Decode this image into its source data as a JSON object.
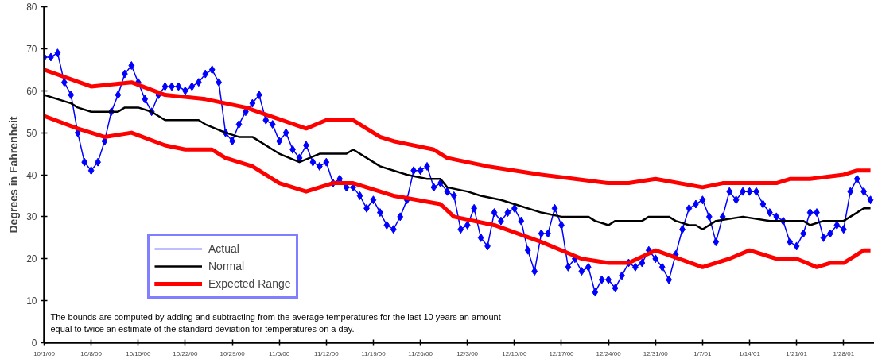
{
  "chart_data": {
    "type": "line",
    "ylabel": "Degrees in Fahrenheit",
    "annotations": [
      "The bounds are computed by adding and subtracting from the average temperatures for the last 10 years an amount equal to twice an estimate of the standard deviation for temperatures on a day."
    ],
    "xlim": [
      "2000-10-01",
      "2001-02-01T14:00"
    ],
    "xticks": [
      {
        "value": "2000-10-01",
        "label": "10/1/00"
      },
      {
        "value": "2000-10-08",
        "label": "10/8/00"
      },
      {
        "value": "2000-10-15",
        "label": "10/15/00"
      },
      {
        "value": "2000-10-22",
        "label": "10/22/00"
      },
      {
        "value": "2000-10-29",
        "label": "10/29/00"
      },
      {
        "value": "2000-11-05",
        "label": "11/5/00"
      },
      {
        "value": "2000-11-12",
        "label": "11/12/00"
      },
      {
        "value": "2000-11-19",
        "label": "11/19/00"
      },
      {
        "value": "2000-11-26",
        "label": "11/26/00"
      },
      {
        "value": "2000-12-03",
        "label": "12/3/00"
      },
      {
        "value": "2000-12-10",
        "label": "12/10/00"
      },
      {
        "value": "2000-12-17",
        "label": "12/17/00"
      },
      {
        "value": "2000-12-24",
        "label": "12/24/00"
      },
      {
        "value": "2000-12-31",
        "label": "12/31/00"
      },
      {
        "value": "2001-01-07",
        "label": "1/7/01"
      },
      {
        "value": "2001-01-14",
        "label": "1/14/01"
      },
      {
        "value": "2001-01-21",
        "label": "1/21/01"
      },
      {
        "value": "2001-01-28",
        "label": "1/28/01"
      }
    ],
    "ylim": [
      0,
      80
    ],
    "yticks": [
      0,
      10,
      20,
      30,
      40,
      50,
      60,
      70,
      80
    ],
    "grid": false,
    "legend": "bottom left",
    "series": [
      {
        "name": "Actual",
        "color": "#0000ff",
        "marker": "diamond",
        "line_style": "solid",
        "x": [
          "2000-10-01",
          "2000-10-02",
          "2000-10-03",
          "2000-10-04",
          "2000-10-05",
          "2000-10-06",
          "2000-10-07",
          "2000-10-08",
          "2000-10-09",
          "2000-10-10",
          "2000-10-11",
          "2000-10-12",
          "2000-10-13",
          "2000-10-14",
          "2000-10-15",
          "2000-10-16",
          "2000-10-17",
          "2000-10-18",
          "2000-10-19",
          "2000-10-20",
          "2000-10-21",
          "2000-10-22",
          "2000-10-23",
          "2000-10-24",
          "2000-10-25",
          "2000-10-26",
          "2000-10-27",
          "2000-10-28",
          "2000-10-29",
          "2000-10-30",
          "2000-10-31",
          "2000-11-01",
          "2000-11-02",
          "2000-11-03",
          "2000-11-04",
          "2000-11-05",
          "2000-11-06",
          "2000-11-07",
          "2000-11-08",
          "2000-11-09",
          "2000-11-10",
          "2000-11-11",
          "2000-11-12",
          "2000-11-13",
          "2000-11-14",
          "2000-11-15",
          "2000-11-16",
          "2000-11-17",
          "2000-11-18",
          "2000-11-19",
          "2000-11-20",
          "2000-11-21",
          "2000-11-22",
          "2000-11-23",
          "2000-11-24",
          "2000-11-25",
          "2000-11-26",
          "2000-11-27",
          "2000-11-28",
          "2000-11-29",
          "2000-11-30",
          "2000-12-01",
          "2000-12-02",
          "2000-12-03",
          "2000-12-04",
          "2000-12-05",
          "2000-12-06",
          "2000-12-07",
          "2000-12-08",
          "2000-12-09",
          "2000-12-10",
          "2000-12-11",
          "2000-12-12",
          "2000-12-13",
          "2000-12-14",
          "2000-12-15",
          "2000-12-16",
          "2000-12-17",
          "2000-12-18",
          "2000-12-19",
          "2000-12-20",
          "2000-12-21",
          "2000-12-22",
          "2000-12-23",
          "2000-12-24",
          "2000-12-25",
          "2000-12-26",
          "2000-12-27",
          "2000-12-28",
          "2000-12-29",
          "2000-12-30",
          "2000-12-31",
          "2001-01-01",
          "2001-01-02",
          "2001-01-03",
          "2001-01-04",
          "2001-01-05",
          "2001-01-06",
          "2001-01-07",
          "2001-01-08",
          "2001-01-09",
          "2001-01-10",
          "2001-01-11",
          "2001-01-12",
          "2001-01-13",
          "2001-01-14",
          "2001-01-15",
          "2001-01-16",
          "2001-01-17",
          "2001-01-18",
          "2001-01-19",
          "2001-01-20",
          "2001-01-21",
          "2001-01-22",
          "2001-01-23",
          "2001-01-24",
          "2001-01-25",
          "2001-01-26",
          "2001-01-27",
          "2001-01-28",
          "2001-01-29",
          "2001-01-30",
          "2001-01-31",
          "2001-02-01"
        ],
        "values": [
          68,
          68,
          69,
          62,
          59,
          50,
          43,
          41,
          43,
          48,
          55,
          59,
          64,
          66,
          62,
          58,
          55,
          59,
          61,
          61,
          61,
          60,
          61,
          62,
          64,
          65,
          62,
          50,
          48,
          52,
          55,
          57,
          59,
          53,
          52,
          48,
          50,
          46,
          44,
          47,
          43,
          42,
          43,
          38,
          39,
          37,
          37,
          35,
          32,
          34,
          31,
          28,
          27,
          30,
          34,
          41,
          41,
          42,
          37,
          38,
          36,
          35,
          27,
          28,
          32,
          25,
          23,
          31,
          29,
          31,
          32,
          29,
          22,
          17,
          26,
          26,
          32,
          28,
          18,
          20,
          17,
          18,
          12,
          15,
          15,
          13,
          16,
          19,
          18,
          19,
          22,
          20,
          18,
          15,
          21,
          27,
          32,
          33,
          34,
          30,
          24,
          30,
          36,
          34,
          36,
          36,
          36,
          33,
          31,
          30,
          29,
          24,
          23,
          26,
          31,
          31,
          25,
          26,
          28,
          27,
          36,
          39,
          36,
          34
        ]
      },
      {
        "name": "Normal",
        "color": "#000000",
        "marker": "none",
        "line_style": "solid",
        "x": [
          "2000-10-01",
          "2000-10-03",
          "2000-10-05",
          "2000-10-06",
          "2000-10-08",
          "2000-10-12",
          "2000-10-13",
          "2000-10-15",
          "2000-10-17",
          "2000-10-19",
          "2000-10-24",
          "2000-10-25",
          "2000-10-28",
          "2000-10-30",
          "2000-11-01",
          "2000-11-05",
          "2000-11-08",
          "2000-11-11",
          "2000-11-15",
          "2000-11-16",
          "2000-11-20",
          "2000-11-22",
          "2000-11-24",
          "2000-11-27",
          "2000-11-29",
          "2000-11-30",
          "2000-12-03",
          "2000-12-05",
          "2000-12-08",
          "2000-12-10",
          "2000-12-14",
          "2000-12-17",
          "2000-12-21",
          "2000-12-22",
          "2000-12-24",
          "2000-12-25",
          "2000-12-29",
          "2000-12-30",
          "2001-01-02",
          "2001-01-03",
          "2001-01-05",
          "2001-01-06",
          "2001-01-07",
          "2001-01-09",
          "2001-01-13",
          "2001-01-17",
          "2001-01-22",
          "2001-01-23",
          "2001-01-25",
          "2001-01-28",
          "2001-01-30",
          "2001-01-31",
          "2001-02-01"
        ],
        "values": [
          59,
          58,
          57,
          56,
          55,
          55,
          56,
          56,
          55,
          53,
          53,
          52,
          50,
          49,
          49,
          45,
          43,
          45,
          45,
          46,
          42,
          41,
          40,
          39,
          39,
          37,
          36,
          35,
          34,
          33,
          31,
          30,
          30,
          29,
          28,
          29,
          29,
          30,
          30,
          29,
          28,
          28,
          27,
          29,
          30,
          29,
          29,
          28,
          29,
          29,
          31,
          32,
          32
        ]
      },
      {
        "color": "#ff0000",
        "marker": "none",
        "line_style": "solid",
        "x": [
          "2000-10-01",
          "2000-10-08",
          "2000-10-14",
          "2000-10-19",
          "2000-10-25",
          "2000-10-28",
          "2000-10-31",
          "2000-11-09",
          "2000-11-12",
          "2000-11-16",
          "2000-11-20",
          "2000-11-22",
          "2000-11-28",
          "2000-11-30",
          "2000-12-06",
          "2000-12-14",
          "2000-12-19",
          "2000-12-24",
          "2000-12-27",
          "2000-12-31",
          "2001-01-07",
          "2001-01-10",
          "2001-01-14",
          "2001-01-18",
          "2001-01-20",
          "2001-01-23",
          "2001-01-28",
          "2001-01-30",
          "2001-02-01"
        ],
        "values": [
          65,
          61,
          62,
          59,
          58,
          57,
          56,
          51,
          53,
          53,
          49,
          48,
          46,
          44,
          42,
          40,
          39,
          38,
          38,
          39,
          37,
          38,
          38,
          38,
          39,
          39,
          40,
          41,
          41
        ]
      },
      {
        "name": "Expected Range",
        "color": "#ff0000",
        "marker": "none",
        "line_style": "solid",
        "x": [
          "2000-10-01",
          "2000-10-06",
          "2000-10-10",
          "2000-10-14",
          "2000-10-19",
          "2000-10-22",
          "2000-10-26",
          "2000-10-28",
          "2000-11-01",
          "2000-11-05",
          "2000-11-09",
          "2000-11-13",
          "2000-11-16",
          "2000-11-22",
          "2000-11-29",
          "2000-12-01",
          "2000-12-07",
          "2000-12-14",
          "2000-12-20",
          "2000-12-24",
          "2000-12-27",
          "2000-12-31",
          "2001-01-07",
          "2001-01-11",
          "2001-01-14",
          "2001-01-18",
          "2001-01-21",
          "2001-01-24",
          "2001-01-26",
          "2001-01-28",
          "2001-01-31",
          "2001-02-01"
        ],
        "values": [
          54,
          51,
          49,
          50,
          47,
          46,
          46,
          44,
          42,
          38,
          36,
          38,
          38,
          35,
          33,
          30,
          28,
          24,
          20,
          19,
          19,
          22,
          18,
          20,
          22,
          20,
          20,
          18,
          19,
          19,
          22,
          22
        ]
      }
    ]
  }
}
